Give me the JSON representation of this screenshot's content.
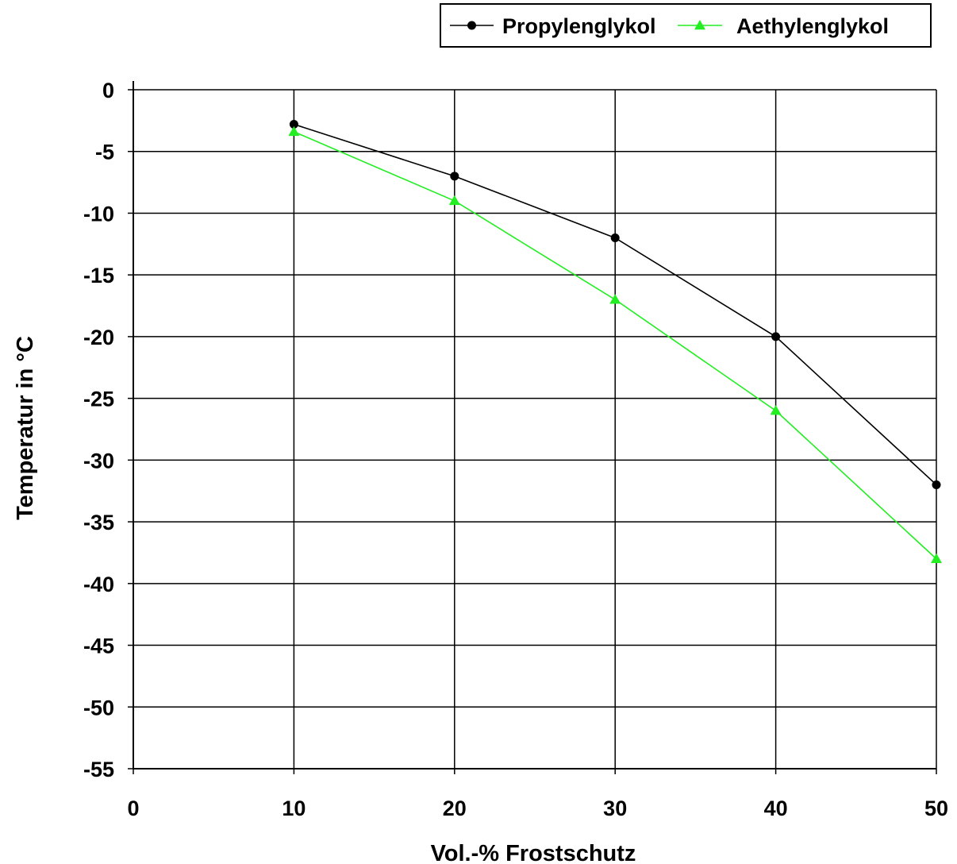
{
  "chart_data": {
    "type": "line",
    "xlabel": "Vol.-% Frostschutz",
    "ylabel": "Temperatur in °C",
    "xlim": [
      0,
      50
    ],
    "ylim": [
      -55,
      0
    ],
    "x_ticks": [
      "0",
      "10",
      "20",
      "30",
      "40",
      "50"
    ],
    "y_ticks": [
      "0",
      "-5",
      "-10",
      "-15",
      "-20",
      "-25",
      "-30",
      "-35",
      "-40",
      "-45",
      "-50",
      "-55"
    ],
    "grid": true,
    "legend_position": "top-right",
    "x": [
      10,
      20,
      30,
      40,
      50
    ],
    "series": [
      {
        "name": "Propylenglykol",
        "marker": "circle",
        "color": "#000000",
        "values": [
          -2.8,
          -7,
          -12,
          -20,
          -32
        ]
      },
      {
        "name": "Aethylenglykol",
        "marker": "triangle",
        "color": "#22ee22",
        "values": [
          -3.4,
          -9,
          -17,
          -26,
          -38
        ]
      }
    ]
  }
}
